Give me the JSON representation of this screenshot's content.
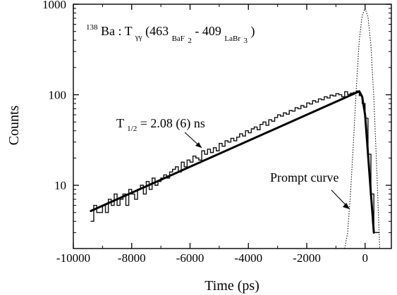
{
  "chart_data": {
    "type": "line",
    "title_parts": {
      "superscript_mass": "138",
      "element": "Ba : T",
      "subscript_gamma": "γγ",
      "energy_1": "(463",
      "subscript_detector_1": "BaF",
      "subscript_detector_1_number": "2",
      "dash": " - 409",
      "subscript_detector_2": "LaBr",
      "subscript_detector_2_number": "3",
      "close_paren": ")"
    },
    "xlabel": "Time (ps)",
    "ylabel": "Counts",
    "xlim": [
      -10000,
      900
    ],
    "ylim": [
      2,
      1000
    ],
    "y_scale": "log",
    "grid": false,
    "x_ticks": [
      -10000,
      -8000,
      -6000,
      -4000,
      -2000,
      0
    ],
    "x_tick_labels": [
      "-10000",
      "-8000",
      "-6000",
      "-4000",
      "-2000",
      "0"
    ],
    "y_ticks": [
      10,
      100,
      1000
    ],
    "y_tick_labels": [
      "10",
      "100",
      "1000"
    ],
    "annotations": {
      "half_life_prefix": "T",
      "half_life_subscript": "1/2",
      "half_life_value": " = 2.08 (6) ns",
      "prompt_curve": "Prompt curve"
    },
    "series": [
      {
        "style": "histogram",
        "x": [
          -9400,
          -9300,
          -9200,
          -9100,
          -9000,
          -8900,
          -8800,
          -8700,
          -8600,
          -8500,
          -8400,
          -8300,
          -8200,
          -8100,
          -8000,
          -7900,
          -7800,
          -7700,
          -7600,
          -7500,
          -7400,
          -7300,
          -7200,
          -7100,
          -7000,
          -6900,
          -6800,
          -6700,
          -6600,
          -6500,
          -6400,
          -6300,
          -6200,
          -6100,
          -6000,
          -5900,
          -5800,
          -5700,
          -5600,
          -5500,
          -5400,
          -5300,
          -5200,
          -5100,
          -5000,
          -4900,
          -4800,
          -4700,
          -4600,
          -4500,
          -4400,
          -4300,
          -4200,
          -4100,
          -4000,
          -3900,
          -3800,
          -3700,
          -3600,
          -3500,
          -3400,
          -3300,
          -3200,
          -3100,
          -3000,
          -2900,
          -2800,
          -2700,
          -2600,
          -2500,
          -2400,
          -2300,
          -2200,
          -2100,
          -2000,
          -1900,
          -1800,
          -1700,
          -1600,
          -1500,
          -1400,
          -1300,
          -1200,
          -1100,
          -1000,
          -900,
          -800,
          -700,
          -600,
          -500,
          -400,
          -300,
          -200,
          -100,
          0,
          100,
          200,
          300,
          400
        ],
        "y": [
          4,
          6,
          5,
          5,
          6,
          5,
          7,
          6,
          8,
          6,
          7,
          8,
          6,
          9,
          8,
          7,
          9,
          10,
          8,
          11,
          9,
          12,
          10,
          11,
          12,
          13,
          12,
          14,
          15,
          16,
          14,
          18,
          16,
          19,
          18,
          21,
          20,
          19,
          24,
          22,
          25,
          23,
          26,
          24,
          29,
          27,
          31,
          30,
          33,
          31,
          34,
          37,
          35,
          40,
          38,
          42,
          44,
          41,
          47,
          50,
          46,
          53,
          51,
          56,
          60,
          58,
          63,
          61,
          67,
          66,
          72,
          70,
          76,
          73,
          81,
          79,
          86,
          83,
          90,
          88,
          95,
          92,
          99,
          97,
          103,
          100,
          95,
          108,
          101,
          104,
          106,
          110,
          98,
          80,
          55,
          22,
          8,
          3,
          3
        ]
      },
      {
        "style": "fit",
        "x": [
          -9400,
          -200
        ],
        "y": [
          5.2,
          109
        ]
      },
      {
        "style": "falling-fit",
        "x": [
          -200,
          -100,
          0,
          100,
          200,
          300
        ],
        "y": [
          109,
          95,
          60,
          22,
          8,
          3
        ]
      },
      {
        "style": "prompt",
        "x": [
          -700,
          -600,
          -500,
          -400,
          -300,
          -200,
          -100,
          0,
          100,
          200,
          300,
          400,
          500
        ],
        "y": [
          2,
          3,
          8,
          30,
          120,
          400,
          750,
          900,
          720,
          350,
          90,
          15,
          2
        ]
      }
    ]
  }
}
